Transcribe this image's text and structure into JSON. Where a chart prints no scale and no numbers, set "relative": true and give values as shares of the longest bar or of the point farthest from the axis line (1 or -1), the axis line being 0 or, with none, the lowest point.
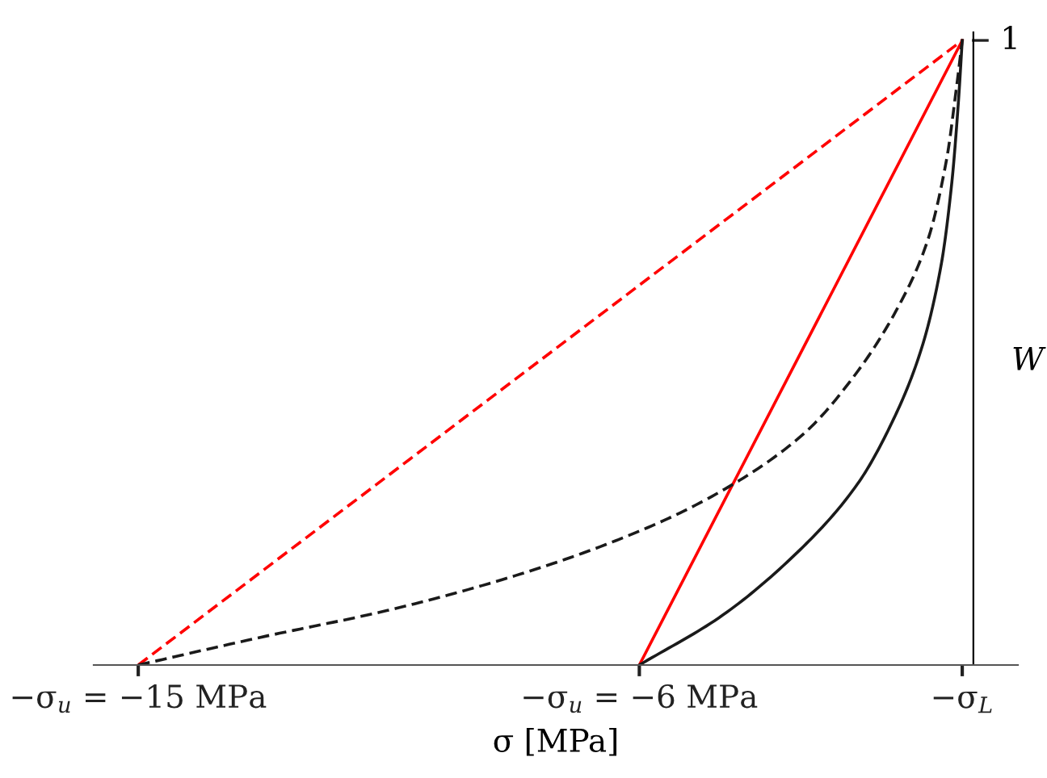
{
  "chart_data": {
    "type": "line",
    "xlabel": "σ [MPa]",
    "ylabel": "W",
    "xlim": [
      -15.8,
      0.8
    ],
    "relative": true,
    "annotations": [
      "1"
    ],
    "xticks": [
      {
        "value": -15,
        "label": "−σ$_{u}$ = −15 MPa"
      },
      {
        "value": -6,
        "label": "−σ$_{u}$ = −6 MPa"
      },
      {
        "value": -0.2,
        "label": "−σ$_{L}$"
      }
    ],
    "series": [
      {
        "color": "#ff0000",
        "line_style": "dashed",
        "x": [
          -15,
          -0.2
        ],
        "values": [
          0,
          1
        ]
      },
      {
        "color": "#ff0000",
        "line_style": "solid",
        "x": [
          -6,
          -0.2
        ],
        "values": [
          0,
          1
        ]
      },
      {
        "color": "#1a1a1a",
        "line_style": "dashed",
        "x": [
          -15,
          -12.82,
          -10.4,
          -7.98,
          -5.85,
          -4.4,
          -3.05,
          -2.08,
          -1.31,
          -0.82,
          -0.48,
          -0.31,
          -0.2
        ],
        "values": [
          0,
          0.044,
          0.09,
          0.15,
          0.22,
          0.285,
          0.37,
          0.47,
          0.58,
          0.68,
          0.81,
          0.92,
          1
        ]
      },
      {
        "color": "#1a1a1a",
        "line_style": "solid",
        "x": [
          -6,
          -4.5,
          -3.05,
          -2.08,
          -1.4,
          -0.92,
          -0.58,
          -0.39,
          -0.27,
          -0.2
        ],
        "values": [
          0,
          0.08,
          0.19,
          0.29,
          0.4,
          0.51,
          0.64,
          0.77,
          0.9,
          1
        ]
      }
    ]
  }
}
